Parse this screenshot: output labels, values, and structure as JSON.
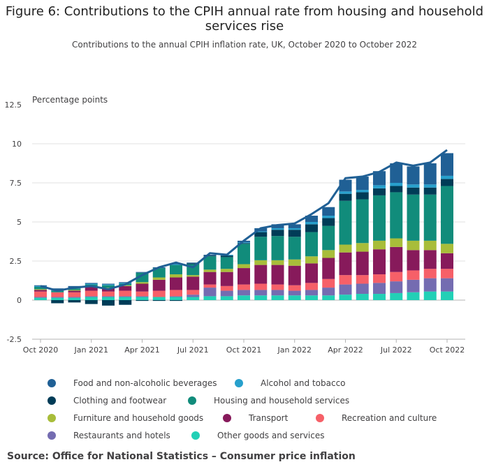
{
  "title": "Figure 6: Contributions to the CPIH annual rate from housing and household services rise",
  "subtitle": "Contributions to the annual CPIH inflation rate, UK, October 2020 to October 2022",
  "source": "Source: Office for National Statistics – Consumer price inflation",
  "legend": [
    {
      "name": "Food and non-alcoholic beverages",
      "color": "#206095"
    },
    {
      "name": "Alcohol and tobacco",
      "color": "#27a0cc"
    },
    {
      "name": "Clothing and footwear",
      "color": "#003c57"
    },
    {
      "name": "Housing and household services",
      "color": "#118c7b"
    },
    {
      "name": "Furniture and household goods",
      "color": "#a8bd3a"
    },
    {
      "name": "Transport",
      "color": "#871a5b"
    },
    {
      "name": "Recreation and culture",
      "color": "#f66068"
    },
    {
      "name": "Restaurants and hotels",
      "color": "#746cb1"
    },
    {
      "name": "Other goods and services",
      "color": "#22d0b6"
    }
  ],
  "chart_data": {
    "type": "bar",
    "stacked": true,
    "title": "Figure 6: Contributions to the CPIH annual rate from housing and household services rise",
    "ylabel": "Percentage points",
    "ylim": [
      -2.5,
      12.5
    ],
    "yticks": [
      "-2.5",
      "0",
      "2.5",
      "5",
      "7.5",
      "10",
      "12.5"
    ],
    "grid": true,
    "categories": [
      "Oct 2020",
      "Nov 2020",
      "Dec 2020",
      "Jan 2021",
      "Feb 2021",
      "Mar 2021",
      "Apr 2021",
      "May 2021",
      "Jun 2021",
      "Jul 2021",
      "Aug 2021",
      "Sep 2021",
      "Oct 2021",
      "Nov 2021",
      "Dec 2021",
      "Jan 2022",
      "Feb 2022",
      "Mar 2022",
      "Apr 2022",
      "May 2022",
      "Jun 2022",
      "Jul 2022",
      "Aug 2022",
      "Sep 2022",
      "Oct 2022"
    ],
    "xtick_labels": [
      "Oct 2020",
      "Jan 2021",
      "Apr 2021",
      "Jul 2021",
      "Oct 2021",
      "Jan 2022",
      "Apr 2022",
      "Jul 2022",
      "Oct 2022"
    ],
    "series": [
      {
        "name": "Other goods and services",
        "color": "#22d0b6",
        "values": [
          0.15,
          0.15,
          0.15,
          0.2,
          0.2,
          0.2,
          0.2,
          0.2,
          0.2,
          0.2,
          0.25,
          0.25,
          0.3,
          0.3,
          0.3,
          0.3,
          0.3,
          0.3,
          0.35,
          0.4,
          0.4,
          0.45,
          0.5,
          0.55,
          0.55
        ]
      },
      {
        "name": "Restaurants and hotels",
        "color": "#746cb1",
        "values": [
          0.05,
          0.05,
          0.05,
          0.05,
          0.05,
          0.05,
          0.05,
          0.0,
          0.05,
          0.15,
          0.55,
          0.35,
          0.35,
          0.35,
          0.35,
          0.3,
          0.35,
          0.5,
          0.65,
          0.65,
          0.7,
          0.75,
          0.8,
          0.85,
          0.85
        ]
      },
      {
        "name": "Recreation and culture",
        "color": "#f66068",
        "values": [
          0.35,
          0.3,
          0.3,
          0.35,
          0.3,
          0.35,
          0.3,
          0.4,
          0.4,
          0.3,
          0.2,
          0.3,
          0.35,
          0.4,
          0.35,
          0.35,
          0.45,
          0.55,
          0.6,
          0.55,
          0.55,
          0.6,
          0.6,
          0.6,
          0.6
        ]
      },
      {
        "name": "Transport",
        "color": "#871a5b",
        "values": [
          0.1,
          0.0,
          0.1,
          0.25,
          0.2,
          0.3,
          0.5,
          0.7,
          0.8,
          0.85,
          0.8,
          0.9,
          1.05,
          1.2,
          1.25,
          1.25,
          1.25,
          1.35,
          1.45,
          1.5,
          1.6,
          1.6,
          1.3,
          1.2,
          1.0
        ]
      },
      {
        "name": "Furniture and household goods",
        "color": "#a8bd3a",
        "values": [
          0.05,
          0.0,
          0.05,
          0.05,
          0.05,
          0.05,
          0.1,
          0.15,
          0.2,
          0.1,
          0.15,
          0.2,
          0.25,
          0.3,
          0.3,
          0.4,
          0.45,
          0.5,
          0.5,
          0.55,
          0.55,
          0.55,
          0.6,
          0.6,
          0.6
        ]
      },
      {
        "name": "Housing and household services",
        "color": "#118c7b",
        "values": [
          0.15,
          0.1,
          0.1,
          0.1,
          0.15,
          0.1,
          0.6,
          0.6,
          0.6,
          0.7,
          0.85,
          0.75,
          1.3,
          1.5,
          1.55,
          1.45,
          1.55,
          1.55,
          2.8,
          2.8,
          2.9,
          2.95,
          2.95,
          2.95,
          3.7
        ]
      },
      {
        "name": "Clothing and footwear",
        "color": "#003c57",
        "values": [
          0.0,
          -0.2,
          -0.15,
          -0.25,
          -0.35,
          -0.3,
          -0.05,
          -0.05,
          -0.05,
          0.05,
          0.05,
          0.1,
          0.05,
          0.3,
          0.4,
          0.45,
          0.5,
          0.5,
          0.45,
          0.45,
          0.45,
          0.4,
          0.45,
          0.45,
          0.45
        ]
      },
      {
        "name": "Alcohol and tobacco",
        "color": "#27a0cc",
        "values": [
          0.05,
          0.05,
          0.05,
          0.05,
          0.05,
          0.05,
          0.0,
          0.0,
          0.05,
          0.0,
          0.0,
          0.05,
          0.05,
          0.05,
          0.1,
          0.1,
          0.15,
          0.15,
          0.15,
          0.15,
          0.2,
          0.2,
          0.2,
          0.2,
          0.2
        ]
      },
      {
        "name": "Food and non-alcoholic beverages",
        "color": "#206095",
        "values": [
          0.05,
          0.1,
          0.1,
          0.05,
          0.05,
          0.05,
          0.05,
          0.05,
          0.05,
          0.05,
          0.05,
          0.0,
          0.1,
          0.2,
          0.25,
          0.25,
          0.4,
          0.55,
          0.75,
          0.85,
          0.9,
          1.25,
          1.15,
          1.35,
          1.45
        ]
      }
    ],
    "line": {
      "name": "CPIH",
      "color": "#206095",
      "values": [
        0.9,
        0.6,
        0.8,
        0.9,
        0.7,
        1.0,
        1.6,
        2.1,
        2.4,
        2.1,
        3.0,
        2.9,
        3.8,
        4.6,
        4.8,
        4.9,
        5.5,
        6.2,
        7.8,
        7.9,
        8.2,
        8.8,
        8.6,
        8.8,
        9.6
      ]
    }
  }
}
